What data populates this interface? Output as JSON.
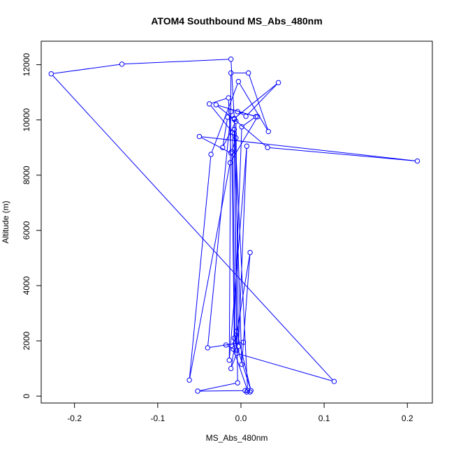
{
  "chart_data": {
    "type": "line",
    "title": "ATOM4 Southbound MS_Abs_480nm",
    "xlabel": "MS_Abs_480nm",
    "ylabel": "Altitude (m)",
    "xlim": [
      -0.24,
      0.23
    ],
    "ylim": [
      -250,
      12850
    ],
    "x_ticks": [
      -0.2,
      -0.1,
      0.0,
      0.1,
      0.2
    ],
    "x_tick_labels": [
      "-0.2",
      "-0.1",
      "0.0",
      "0.1",
      "0.2"
    ],
    "y_ticks": [
      0,
      2000,
      4000,
      6000,
      8000,
      10000,
      12000
    ],
    "y_tick_labels": [
      "0",
      "2000",
      "4000",
      "6000",
      "8000",
      "10000",
      "12000"
    ],
    "grid": false,
    "series": [
      {
        "color": "#0000ff",
        "marker": "open-circle",
        "x": [
          -0.012,
          -0.04,
          0.003,
          -0.018,
          -0.005,
          -0.008,
          0.001,
          0.011,
          -0.012,
          -0.005,
          0.112,
          -0.228,
          -0.143,
          -0.012,
          -0.008,
          -0.016,
          -0.022,
          -0.006,
          -0.003,
          0.007,
          -0.014,
          -0.012,
          0.009,
          0.033,
          -0.003,
          -0.036,
          -0.062,
          -0.013,
          0.02,
          -0.004,
          0.006,
          0.045,
          -0.008,
          0.008,
          -0.009,
          0.001,
          0.018,
          -0.03,
          -0.008,
          0.032,
          0.212,
          -0.05,
          -0.012,
          -0.015,
          -0.038,
          -0.01,
          -0.007,
          -0.005,
          0.012,
          -0.008,
          -0.011,
          -0.006,
          -0.008,
          -0.004,
          -0.052,
          0.005,
          0.007,
          0.011
        ],
        "y": [
          10300,
          1750,
          1950,
          1850,
          1650,
          9650,
          1150,
          5200,
          1000,
          1550,
          530,
          11670,
          12020,
          12200,
          10050,
          10100,
          9000,
          9950,
          1800,
          9050,
          1300,
          11700,
          11700,
          9580,
          11390,
          8750,
          580,
          8450,
          10120,
          10300,
          10130,
          11350,
          10050,
          200,
          1700,
          9750,
          10120,
          10550,
          10020,
          9000,
          8510,
          9400,
          8800,
          10800,
          10580,
          9550,
          1900,
          2350,
          200,
          2100,
          8850,
          9350,
          9500,
          480,
          180,
          200,
          150,
          150
        ]
      }
    ]
  }
}
